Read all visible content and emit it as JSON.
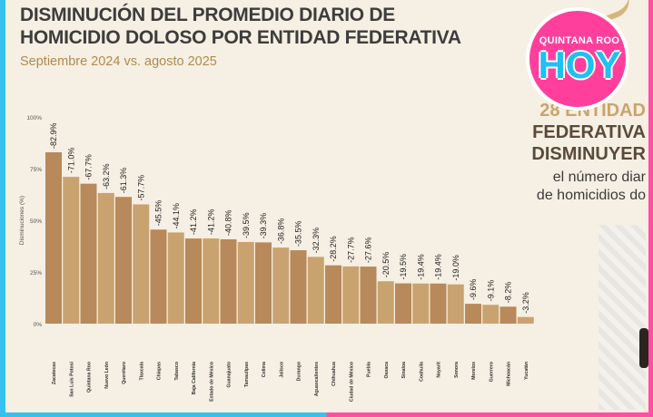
{
  "header": {
    "title_line1": "DISMINUCIÓN DEL PROMEDIO DIARIO DE",
    "title_line2": "HOMICIDIO DOLOSO POR ENTIDAD FEDERATIVA",
    "subtitle": "Septiembre 2024 vs. agosto 2025"
  },
  "logo": {
    "line1": "QUINTANA ROO",
    "line2": "HOY"
  },
  "side_panel": {
    "line1": "28 ENTIDAD",
    "line2": "FEDERATIVA",
    "line3": "DISMINUYER",
    "line4": "el número diar",
    "line5": "de homicidios do"
  },
  "colors": {
    "bar_dark": "#b8895a",
    "bar_light": "#c9a36f",
    "accent_blue": "#35c3ee",
    "accent_pink": "#ff3f9b"
  },
  "chart_data": {
    "type": "bar",
    "title": "DISMINUCIÓN DEL PROMEDIO DIARIO DE HOMICIDIO DOLOSO POR ENTIDAD FEDERATIVA",
    "subtitle": "Septiembre 2024 vs. agosto 2025",
    "ylabel": "Disminuciones (%)",
    "xlabel": "",
    "yticks": [
      "100%",
      "75%",
      "50%",
      "25%",
      "0%"
    ],
    "ytick_values": [
      100,
      75,
      50,
      25,
      0
    ],
    "ylim": [
      0,
      100
    ],
    "grid": false,
    "categories": [
      "Zacatecas",
      "San Luis Potosí",
      "Quintana Roo",
      "Nuevo León",
      "Querétaro",
      "Tlaxcala",
      "Chiapas",
      "Tabasco",
      "Baja California",
      "Estado de México",
      "Guanajuato",
      "Tamaulipas",
      "Colima",
      "Jalisco",
      "Durango",
      "Aguascalientes",
      "Chihuahua",
      "Ciudad de México",
      "Puebla",
      "Oaxaca",
      "Sinaloa",
      "Coahuila",
      "Nayarit",
      "Sonora",
      "Morelos",
      "Guerrero",
      "Michoacán",
      "Yucatán"
    ],
    "values": [
      82.9,
      71.0,
      67.7,
      63.2,
      61.3,
      57.7,
      45.5,
      44.1,
      41.2,
      41.2,
      40.8,
      39.5,
      39.3,
      36.8,
      35.5,
      32.3,
      28.2,
      27.7,
      27.6,
      20.5,
      19.5,
      19.4,
      19.4,
      19.0,
      9.6,
      9.1,
      8.2,
      3.2
    ],
    "labels": [
      "-82.9%",
      "-71.0%",
      "-67.7%",
      "-63.2%",
      "-61.3%",
      "-57.7%",
      "-45.5%",
      "-44.1%",
      "-41.2%",
      "-41.2%",
      "-40.8%",
      "-39.5%",
      "-39.3%",
      "-36.8%",
      "-35.5%",
      "-32.3%",
      "-28.2%",
      "-27.7%",
      "-27.6%",
      "-20.5%",
      "-19.5%",
      "-19.4%",
      "-19.4%",
      "-19.0%",
      "-9.6%",
      "-9.1%",
      "-8.2%",
      "-3.2%"
    ],
    "legend": "none"
  }
}
